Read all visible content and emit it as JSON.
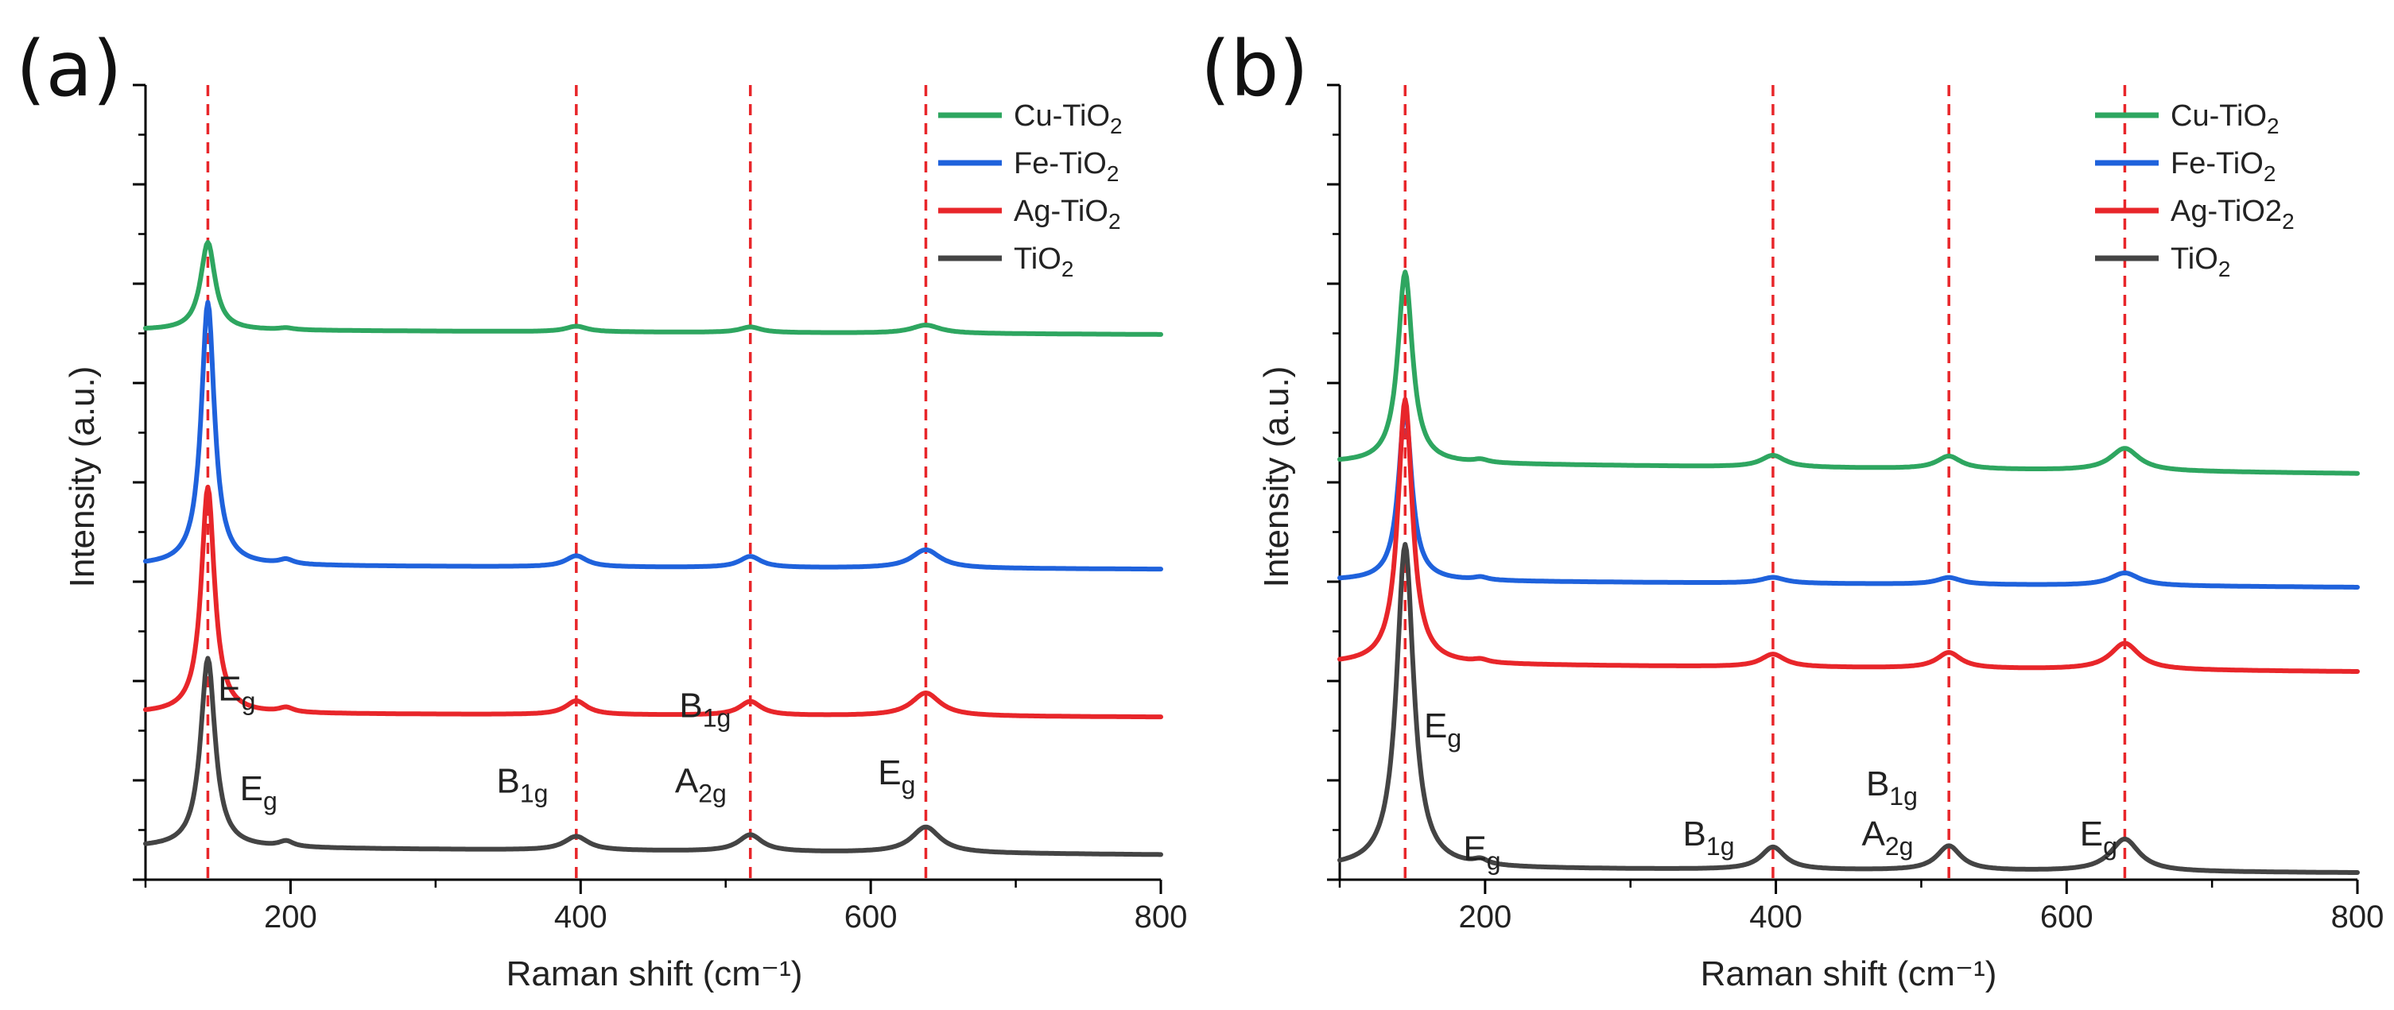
{
  "chart_data": [
    {
      "type": "line",
      "panel_label": "(a)",
      "xlabel": "Raman shift (cm⁻¹)",
      "ylabel": "Intensity (a.u.)",
      "xlim": [
        100,
        800
      ],
      "x_ticks": [
        200,
        400,
        600,
        800
      ],
      "y_ticks_labeled": false,
      "legend_position": "top-right",
      "peak_lines": [
        143,
        397,
        517,
        638
      ],
      "annotations": [
        {
          "main": "E",
          "sub": "g",
          "x": 150,
          "level": 1.64
        },
        {
          "main": "E",
          "sub": "g",
          "x": 165,
          "level": 0.56
        },
        {
          "main": "B",
          "sub": "1g",
          "x": 342,
          "level": 0.64
        },
        {
          "main": "B",
          "sub": "1g",
          "x": 468,
          "level": 1.46
        },
        {
          "main": "A",
          "sub": "2g",
          "x": 465,
          "level": 0.64
        },
        {
          "main": "E",
          "sub": "g",
          "x": 605,
          "level": 0.73
        }
      ],
      "series": [
        {
          "name": "Cu-TiO",
          "name_sub": "2",
          "color": "#2ea660",
          "offset": 5.65,
          "peaks": [
            [
              143,
              0.95,
              6
            ],
            [
              197,
              0.02,
              6
            ],
            [
              397,
              0.06,
              9
            ],
            [
              517,
              0.06,
              9
            ],
            [
              638,
              0.09,
              12
            ]
          ],
          "slope": -0.05
        },
        {
          "name": "Fe-TiO",
          "name_sub": "2",
          "color": "#1f62dc",
          "offset": 3.1,
          "peaks": [
            [
              143,
              2.85,
              5.5
            ],
            [
              197,
              0.05,
              6
            ],
            [
              397,
              0.12,
              9
            ],
            [
              517,
              0.12,
              9
            ],
            [
              638,
              0.2,
              12
            ]
          ],
          "slope": -0.04
        },
        {
          "name": "Ag-TiO",
          "name_sub": "2",
          "color": "#e8262a",
          "offset": 1.5,
          "peaks": [
            [
              143,
              2.45,
              5.5
            ],
            [
              197,
              0.05,
              6
            ],
            [
              397,
              0.15,
              9
            ],
            [
              517,
              0.15,
              9
            ],
            [
              638,
              0.25,
              12
            ]
          ],
          "slope": -0.04
        },
        {
          "name": "TiO",
          "name_sub": "2",
          "color": "#444444",
          "offset": 0.05,
          "peaks": [
            [
              143,
              2.05,
              6
            ],
            [
              197,
              0.06,
              6
            ],
            [
              397,
              0.15,
              10
            ],
            [
              517,
              0.18,
              10
            ],
            [
              638,
              0.28,
              12
            ]
          ],
          "slope": -0.08
        }
      ],
      "ylim": [
        -0.3,
        8.3
      ]
    },
    {
      "type": "line",
      "panel_label": "(b)",
      "xlabel": "Raman shift (cm⁻¹)",
      "ylabel": "Intensity (a.u.)",
      "xlim": [
        100,
        800
      ],
      "x_ticks": [
        200,
        400,
        600,
        800
      ],
      "y_ticks_labeled": false,
      "legend_position": "top-right",
      "peak_lines": [
        145,
        398,
        519,
        640
      ],
      "annotations": [
        {
          "main": "E",
          "sub": "g",
          "x": 158,
          "level": 1.45
        },
        {
          "main": "E",
          "sub": "g",
          "x": 185,
          "level": 0.2
        },
        {
          "main": "B",
          "sub": "1g",
          "x": 336,
          "level": 0.35
        },
        {
          "main": "B",
          "sub": "1g",
          "x": 462,
          "level": 0.86
        },
        {
          "main": "A",
          "sub": "2g",
          "x": 459,
          "level": 0.35
        },
        {
          "main": "E",
          "sub": "g",
          "x": 609,
          "level": 0.35
        }
      ],
      "series": [
        {
          "name": "Cu-TiO",
          "name_sub": "2",
          "color": "#2ea660",
          "offset": 4.25,
          "peaks": [
            [
              145,
              1.95,
              6
            ],
            [
              197,
              0.03,
              6
            ],
            [
              398,
              0.12,
              10
            ],
            [
              519,
              0.13,
              10
            ],
            [
              640,
              0.23,
              12
            ]
          ],
          "slope": -0.11
        },
        {
          "name": "Fe-TiO",
          "name_sub": "2",
          "color": "#1f62dc",
          "offset": 3.05,
          "peaks": [
            [
              145,
              1.75,
              5.5
            ],
            [
              197,
              0.03,
              6
            ],
            [
              398,
              0.06,
              10
            ],
            [
              519,
              0.07,
              10
            ],
            [
              640,
              0.13,
              12
            ]
          ],
          "slope": -0.07
        },
        {
          "name": "Ag-TiO2",
          "name_sub": "2",
          "color": "#e8262a",
          "offset": 2.2,
          "peaks": [
            [
              145,
              2.7,
              6
            ],
            [
              197,
              0.03,
              6
            ],
            [
              398,
              0.13,
              10
            ],
            [
              519,
              0.16,
              10
            ],
            [
              640,
              0.27,
              12
            ]
          ],
          "slope": -0.08
        },
        {
          "name": "TiO",
          "name_sub": "2",
          "color": "#444444",
          "offset": 0.12,
          "peaks": [
            [
              145,
              3.3,
              7
            ],
            [
              197,
              0.05,
              6
            ],
            [
              398,
              0.23,
              10
            ],
            [
              519,
              0.25,
              10
            ],
            [
              640,
              0.33,
              12
            ]
          ],
          "slope": -0.05
        }
      ],
      "ylim": [
        0,
        8.1
      ]
    }
  ]
}
